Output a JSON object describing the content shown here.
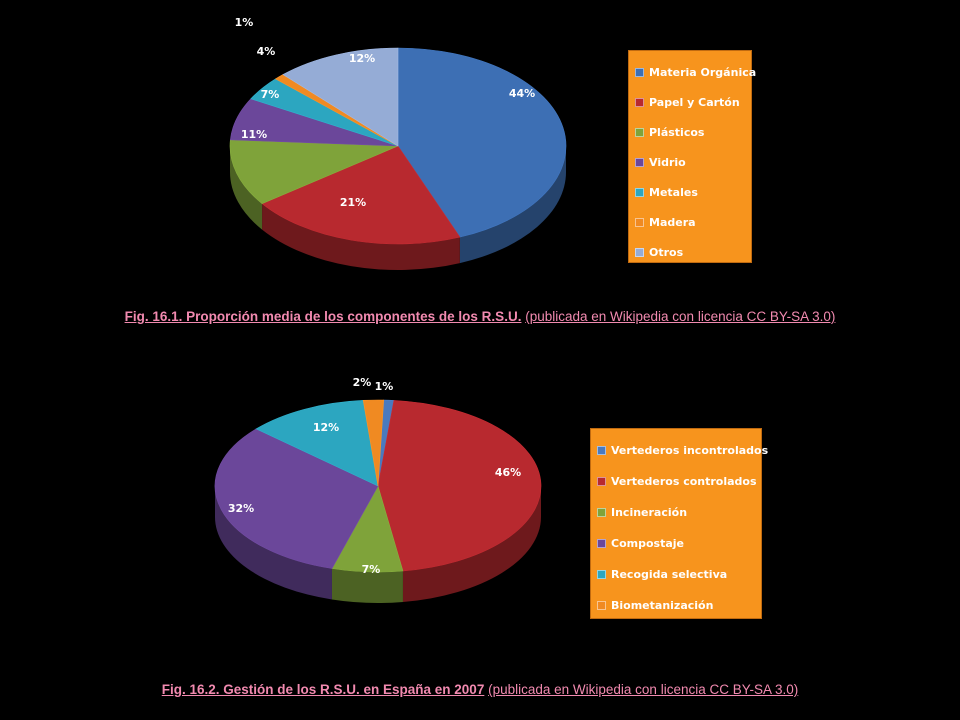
{
  "colors": {
    "background": "#000000",
    "legend_background": "#f7941d",
    "caption_text": "#f28ab0",
    "label_text": "#ffffff"
  },
  "chart_data": [
    {
      "type": "pie",
      "style": "3d",
      "start_angle_deg": -90,
      "slices": [
        {
          "label": "Materia Orgánica",
          "value": 44,
          "value_label": "44%",
          "color": "#3d6fb4"
        },
        {
          "label": "Papel y Cartón",
          "value": 21,
          "value_label": "21%",
          "color": "#b8292f"
        },
        {
          "label": "Plásticos",
          "value": 11,
          "value_label": "11%",
          "color": "#7fa33a"
        },
        {
          "label": "Vidrio",
          "value": 7,
          "value_label": "7%",
          "color": "#6b479a"
        },
        {
          "label": "Metales",
          "value": 4,
          "value_label": "4%",
          "color": "#2ca6c0"
        },
        {
          "label": "Madera",
          "value": 1,
          "value_label": "1%",
          "color": "#f08a22"
        },
        {
          "label": "Otros",
          "value": 12,
          "value_label": "12%",
          "color": "#95acd6"
        }
      ],
      "legend_position": "right"
    },
    {
      "type": "pie",
      "style": "3d",
      "start_angle_deg": -88,
      "slices": [
        {
          "label": "Vertederos incontrolados",
          "value": 1,
          "value_label": "1%",
          "color": "#4a7abf"
        },
        {
          "label": "Vertederos controlados",
          "value": 46,
          "value_label": "46%",
          "color": "#b8292f"
        },
        {
          "label": "Incineración",
          "value": 7,
          "value_label": "7%",
          "color": "#7fa33a"
        },
        {
          "label": "Compostaje",
          "value": 32,
          "value_label": "32%",
          "color": "#6b479a"
        },
        {
          "label": "Recogida selectiva",
          "value": 12,
          "value_label": "12%",
          "color": "#2ca6c0"
        },
        {
          "label": "Biometanización",
          "value": 2,
          "value_label": "2%",
          "color": "#f08a22"
        }
      ],
      "legend_position": "right"
    }
  ],
  "captions": [
    {
      "bold": "Fig. 16.1. Proporción media de los componentes de los R.S.U.",
      "link": "(publicada en Wikipedia con licencia CC BY-SA 3.0)"
    },
    {
      "bold": "Fig. 16.2. Gestión de los R.S.U. en España en 2007",
      "link": "(publicada en Wikipedia con licencia CC BY-SA 3.0)"
    }
  ]
}
